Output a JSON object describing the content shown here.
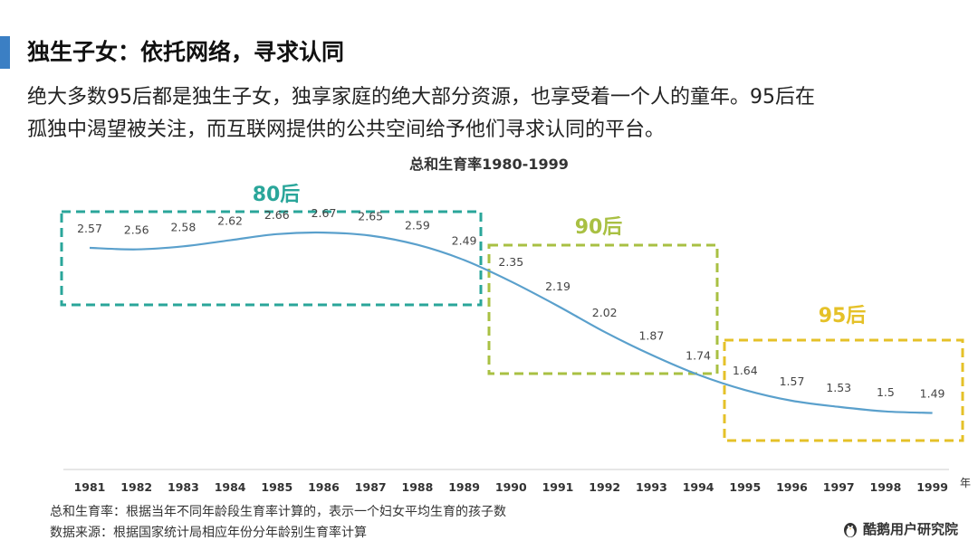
{
  "header": {
    "title": "独生子女：依托网络，寻求认同",
    "desc_line1": "绝大多数95后都是独生子女，独享家庭的绝大部分资源，也享受着一个人的童年。95后在",
    "desc_line2": "孤独中渴望被关注，而互联网提供的公共空间给予他们寻求认同的平台。"
  },
  "chart_data": {
    "type": "line",
    "title": "总和生育率1980-1999",
    "x": [
      "1981",
      "1982",
      "1983",
      "1984",
      "1985",
      "1986",
      "1987",
      "1988",
      "1989",
      "1990",
      "1991",
      "1992",
      "1993",
      "1994",
      "1995",
      "1996",
      "1997",
      "1998",
      "1999"
    ],
    "values": [
      2.57,
      2.56,
      2.58,
      2.62,
      2.66,
      2.67,
      2.65,
      2.59,
      2.49,
      2.35,
      2.19,
      2.02,
      1.87,
      1.74,
      1.64,
      1.57,
      1.53,
      1.5,
      1.49
    ],
    "x_unit": "年",
    "groups": [
      {
        "label": "80后",
        "from": "1981",
        "to": "1989",
        "color": "#2aa69a"
      },
      {
        "label": "90后",
        "from": "1990",
        "to": "1994",
        "color": "#a9c043"
      },
      {
        "label": "95后",
        "from": "1995",
        "to": "1999",
        "color": "#e5c128"
      }
    ],
    "line_color": "#5aa0cc",
    "grid": false
  },
  "footer": {
    "note1": "总和生育率：根据当年不同年龄段生育率计算的，表示一个妇女平均生育的孩子数",
    "note2": "数据来源：根据国家统计局相应年份分年龄别生育率计算",
    "brand": "酷鹅用户研究院"
  }
}
